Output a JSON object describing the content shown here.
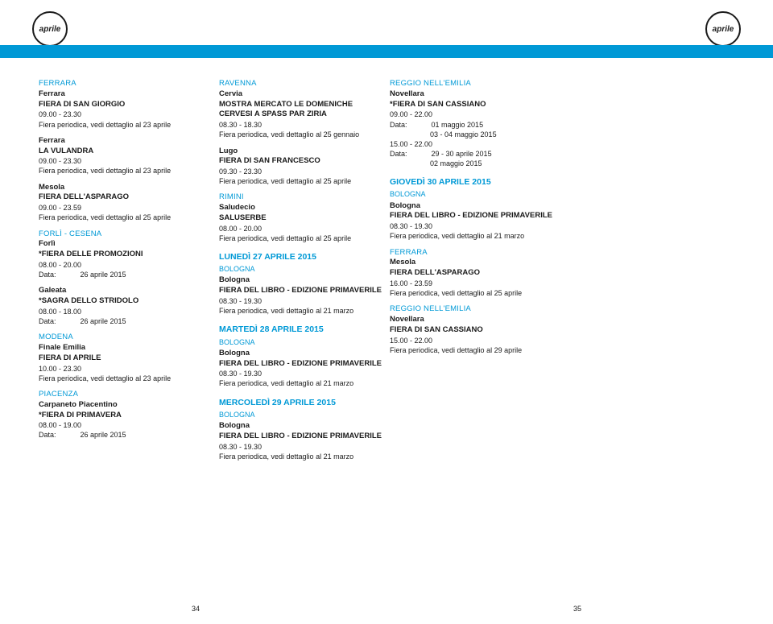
{
  "badge_text": "aprile",
  "page_left": "34",
  "page_right": "35",
  "col1": [
    {
      "province": "FERRARA",
      "blocks": [
        {
          "city": "Ferrara",
          "event": "FIERA DI SAN GIORGIO",
          "time": "09.00 - 23.30",
          "detail": "Fiera periodica, vedi dettaglio al 23 aprile"
        },
        {
          "city": "Ferrara",
          "event": "LA VULANDRA",
          "time": "09.00 - 23.30",
          "detail": "Fiera periodica, vedi dettaglio al 23 aprile"
        },
        {
          "city": "Mesola",
          "event": "FIERA DELL'ASPARAGO",
          "time": "09.00 - 23.59",
          "detail": "Fiera periodica, vedi dettaglio al 25 aprile"
        }
      ]
    },
    {
      "province": "FORLÌ - CESENA",
      "blocks": [
        {
          "city": "Forlì",
          "event": "*FIERA DELLE PROMOZIONI",
          "time": "08.00 - 20.00",
          "detail": "Data:            26 aprile 2015"
        },
        {
          "city": "Galeata",
          "event": "*SAGRA DELLO STRIDOLO",
          "time": "08.00 - 18.00",
          "detail": "Data:            26 aprile 2015"
        }
      ]
    },
    {
      "province": "MODENA",
      "blocks": [
        {
          "city": "Finale Emilia",
          "event": "FIERA DI APRILE",
          "time": "10.00 - 23.30",
          "detail": "Fiera periodica, vedi dettaglio al 23 aprile"
        }
      ]
    },
    {
      "province": "PIACENZA",
      "blocks": [
        {
          "city": "Carpaneto Piacentino",
          "event": "*FIERA DI PRIMAVERA",
          "time": "08.00 - 19.00",
          "detail": "Data:            26 aprile 2015"
        }
      ]
    }
  ],
  "col2": [
    {
      "province": "RAVENNA",
      "blocks": [
        {
          "city": "Cervia",
          "event": "MOSTRA MERCATO LE DOMENICHE CERVESI A SPASS PAR ZIRIA",
          "time": "08.30 - 18.30",
          "detail": "Fiera periodica, vedi dettaglio al 25 gennaio"
        },
        {
          "city": "Lugo",
          "event": "FIERA DI SAN FRANCESCO",
          "time": "09.30 - 23.30",
          "detail": "Fiera periodica, vedi dettaglio al 25 aprile"
        }
      ]
    },
    {
      "province": "RIMINI",
      "blocks": [
        {
          "city": "Saludecio",
          "event": "SALUSERBE",
          "time": "08.00 - 20.00",
          "detail": "Fiera periodica, vedi dettaglio al 25 aprile"
        }
      ]
    },
    {
      "day": "LUNEDÌ 27 APRILE 2015",
      "daycat": "BOLOGNA",
      "blocks": [
        {
          "city": "Bologna",
          "event": "FIERA DEL LIBRO - EDIZIONE PRIMAVERILE",
          "time": "08.30 - 19.30",
          "detail": "Fiera periodica, vedi dettaglio al 21 marzo"
        }
      ]
    },
    {
      "day": "MARTEDÌ 28 APRILE 2015",
      "daycat": "BOLOGNA",
      "blocks": [
        {
          "city": "Bologna",
          "event": "FIERA DEL LIBRO - EDIZIONE PRIMAVERILE",
          "time": "08.30 - 19.30",
          "detail": "Fiera periodica, vedi dettaglio al 21 marzo"
        }
      ]
    },
    {
      "day": "MERCOLEDÌ 29 APRILE 2015",
      "daycat": "BOLOGNA",
      "blocks": [
        {
          "city": "Bologna",
          "event": "FIERA DEL LIBRO - EDIZIONE PRIMAVERILE",
          "time": "08.30 - 19.30",
          "detail": "Fiera periodica, vedi dettaglio al 21 marzo"
        }
      ]
    }
  ],
  "col3": [
    {
      "province": "REGGIO NELL'EMILIA",
      "blocks": [
        {
          "city": "Novellara",
          "event": "*FIERA DI SAN CASSIANO",
          "time": "09.00 - 22.00",
          "detail": "Data:            01 maggio 2015",
          "detail2": "                    03 - 04 maggio 2015",
          "time2": "15.00 - 22.00",
          "detail3": "Data:            29 - 30 aprile 2015",
          "detail4": "                    02 maggio 2015"
        }
      ]
    },
    {
      "day": "GIOVEDÌ 30 APRILE 2015",
      "daycat": "BOLOGNA",
      "blocks": [
        {
          "city": "Bologna",
          "event": "FIERA DEL LIBRO - EDIZIONE PRIMAVERILE",
          "time": "08.30 - 19.30",
          "detail": "Fiera periodica, vedi dettaglio al 21 marzo"
        }
      ]
    },
    {
      "province": "FERRARA",
      "blocks": [
        {
          "city": "Mesola",
          "event": "FIERA DELL'ASPARAGO",
          "time": "16.00 - 23.59",
          "detail": "Fiera periodica, vedi dettaglio al 25 aprile"
        }
      ]
    },
    {
      "province": "REGGIO NELL'EMILIA",
      "blocks": [
        {
          "city": "Novellara",
          "event": "FIERA DI SAN CASSIANO",
          "time": "15.00 - 22.00",
          "detail": "Fiera periodica, vedi dettaglio al 29 aprile"
        }
      ]
    }
  ]
}
